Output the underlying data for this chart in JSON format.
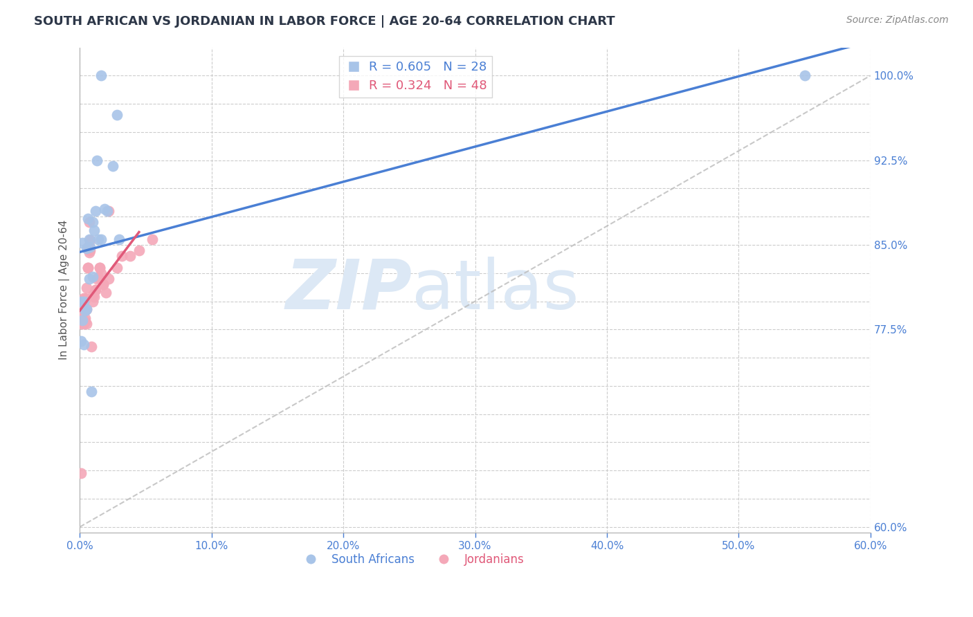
{
  "title": "SOUTH AFRICAN VS JORDANIAN IN LABOR FORCE | AGE 20-64 CORRELATION CHART",
  "source": "Source: ZipAtlas.com",
  "ylabel": "In Labor Force | Age 20-64",
  "xlim": [
    0.0,
    0.6
  ],
  "ylim": [
    0.595,
    1.025
  ],
  "south_africans_x": [
    0.001,
    0.002,
    0.002,
    0.003,
    0.004,
    0.005,
    0.006,
    0.007,
    0.008,
    0.009,
    0.01,
    0.011,
    0.012,
    0.014,
    0.016,
    0.019,
    0.021,
    0.025,
    0.028,
    0.03,
    0.001,
    0.003,
    0.005,
    0.007,
    0.01,
    0.013,
    0.016,
    0.55
  ],
  "south_africans_y": [
    0.8,
    0.852,
    0.783,
    0.8,
    0.792,
    0.847,
    0.873,
    0.82,
    0.848,
    0.72,
    0.822,
    0.863,
    0.88,
    0.855,
    0.855,
    0.882,
    0.88,
    0.92,
    0.965,
    0.855,
    0.765,
    0.762,
    0.793,
    0.855,
    0.87,
    0.925,
    1.0,
    1.0
  ],
  "jordanians_x": [
    0.001,
    0.001,
    0.001,
    0.001,
    0.002,
    0.002,
    0.002,
    0.003,
    0.003,
    0.003,
    0.004,
    0.004,
    0.005,
    0.005,
    0.006,
    0.006,
    0.007,
    0.007,
    0.008,
    0.009,
    0.01,
    0.011,
    0.012,
    0.013,
    0.014,
    0.015,
    0.016,
    0.018,
    0.02,
    0.022,
    0.001,
    0.002,
    0.003,
    0.004,
    0.005,
    0.006,
    0.008,
    0.01,
    0.012,
    0.015,
    0.018,
    0.022,
    0.028,
    0.032,
    0.038,
    0.045,
    0.055,
    0.001
  ],
  "jordanians_y": [
    0.783,
    0.785,
    0.79,
    0.782,
    0.793,
    0.8,
    0.783,
    0.784,
    0.8,
    0.803,
    0.785,
    0.803,
    0.793,
    0.812,
    0.83,
    0.848,
    0.843,
    0.87,
    0.854,
    0.76,
    0.8,
    0.804,
    0.81,
    0.82,
    0.821,
    0.83,
    0.825,
    0.815,
    0.808,
    0.88,
    0.78,
    0.782,
    0.78,
    0.782,
    0.78,
    0.83,
    0.845,
    0.805,
    0.81,
    0.83,
    0.815,
    0.82,
    0.83,
    0.84,
    0.84,
    0.845,
    0.855,
    0.648
  ],
  "blue_color": "#a8c4e8",
  "pink_color": "#f4a8b8",
  "blue_line_color": "#4a7fd4",
  "pink_line_color": "#e05878",
  "ref_line_color": "#bbbbbb",
  "legend_blue_label": "R = 0.605   N = 28",
  "legend_pink_label": "R = 0.324   N = 48",
  "south_africans_legend": "South Africans",
  "jordanians_legend": "Jordanians",
  "background_color": "#ffffff",
  "grid_color": "#cccccc",
  "title_color": "#2d3748",
  "axis_label_color": "#555555",
  "tick_color": "#4a7fd4",
  "watermark_zip": "ZIP",
  "watermark_atlas": "atlas",
  "watermark_color": "#dce8f5"
}
